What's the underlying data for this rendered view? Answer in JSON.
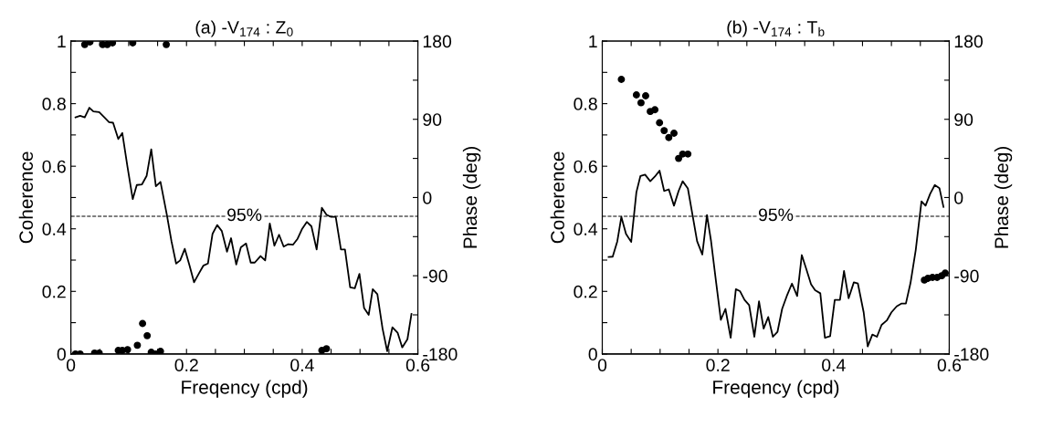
{
  "chart_data": [
    {
      "type": "line",
      "title": "(a) -V$_{174}$ : Z$_{0}$",
      "xlabel": "Freqency (cpd)",
      "ylabel": "Coherence",
      "y2label": "Phase (deg)",
      "xlim": [
        0,
        0.6
      ],
      "xticks": [
        0,
        {
          "value": 0.05,
          "label": null
        },
        {
          "value": 0.1,
          "label": null
        },
        {
          "value": 0.15,
          "label": null
        },
        0.2,
        {
          "value": 0.25,
          "label": null
        },
        {
          "value": 0.3,
          "label": null
        },
        {
          "value": 0.35,
          "label": null
        },
        0.4,
        {
          "value": 0.45,
          "label": null
        },
        {
          "value": 0.5,
          "label": null
        },
        {
          "value": 0.55,
          "label": null
        },
        0.6
      ],
      "ylim": [
        0,
        1
      ],
      "yticks": [
        0,
        {
          "value": 0.1,
          "label": null
        },
        0.2,
        {
          "value": 0.3,
          "label": null
        },
        0.4,
        {
          "value": 0.5,
          "label": null
        },
        0.6,
        {
          "value": 0.7,
          "label": null
        },
        0.8,
        {
          "value": 0.9,
          "label": null
        },
        1
      ],
      "y2lim": [
        -180,
        180
      ],
      "y2ticks": [
        -180,
        {
          "value": -135,
          "label": null
        },
        -90,
        {
          "value": -45,
          "label": null
        },
        0,
        {
          "value": 45,
          "label": null
        },
        90,
        {
          "value": 135,
          "label": null
        },
        180
      ],
      "grid": false,
      "ref_lines": [
        {
          "axis": "y",
          "value": 0.44,
          "color": "#000000",
          "line_style": "dashed"
        }
      ],
      "annotations": [
        {
          "text": "95%",
          "x": 0.3,
          "y": 0.44
        }
      ],
      "series": [
        {
          "color": "#000000",
          "marker": "none",
          "line_style": "solid",
          "x": [
            0.008,
            0.016,
            0.024,
            0.032,
            0.039,
            0.049,
            0.058,
            0.066,
            0.073,
            0.082,
            0.089,
            0.098,
            0.107,
            0.114,
            0.123,
            0.131,
            0.139,
            0.147,
            0.155,
            0.166,
            0.174,
            0.182,
            0.189,
            0.197,
            0.205,
            0.213,
            0.221,
            0.229,
            0.237,
            0.245,
            0.253,
            0.261,
            0.27,
            0.277,
            0.286,
            0.294,
            0.303,
            0.311,
            0.318,
            0.328,
            0.336,
            0.344,
            0.352,
            0.36,
            0.368,
            0.376,
            0.384,
            0.392,
            0.4,
            0.408,
            0.416,
            0.425,
            0.434,
            0.442,
            0.45,
            0.458,
            0.467,
            0.474,
            0.483,
            0.491,
            0.499,
            0.507,
            0.515,
            0.522,
            0.53,
            0.539,
            0.547,
            0.556,
            0.565,
            0.573,
            0.582,
            0.589
          ],
          "values": [
            0.756,
            0.761,
            0.756,
            0.787,
            0.775,
            0.773,
            0.756,
            0.741,
            0.739,
            0.687,
            0.706,
            0.597,
            0.495,
            0.54,
            0.542,
            0.569,
            0.654,
            0.536,
            0.55,
            0.445,
            0.36,
            0.289,
            0.299,
            0.336,
            0.284,
            0.229,
            0.256,
            0.282,
            0.289,
            0.384,
            0.412,
            0.393,
            0.327,
            0.37,
            0.286,
            0.341,
            0.353,
            0.292,
            0.292,
            0.313,
            0.299,
            0.417,
            0.346,
            0.381,
            0.343,
            0.351,
            0.349,
            0.368,
            0.4,
            0.422,
            0.408,
            0.334,
            0.467,
            0.445,
            0.438,
            0.438,
            0.334,
            0.334,
            0.213,
            0.21,
            0.256,
            0.147,
            0.125,
            0.207,
            0.191,
            0.081,
            0.009,
            0.085,
            0.068,
            0.021,
            0.047,
            0.128
          ]
        },
        {
          "type": "scatter",
          "color": "#000000",
          "marker": "circle",
          "axis": "y2",
          "x": [
            0.024,
            0.033,
            0.055,
            0.063,
            0.072,
            0.107,
            0.165,
            0.008,
            0.016,
            0.041,
            0.049,
            0.082,
            0.089,
            0.098,
            0.115,
            0.124,
            0.132,
            0.139,
            0.147,
            0.155,
            0.434,
            0.442
          ],
          "values": [
            176,
            179,
            176,
            176,
            178,
            178,
            176,
            -180,
            -180,
            -179,
            -179,
            -176,
            -176,
            -175,
            -170,
            -145,
            -159,
            -178,
            -180,
            -177,
            -176,
            -174
          ]
        }
      ]
    },
    {
      "type": "line",
      "title": "(b) -V$_{174}$ : T$_{b}$",
      "xlabel": "Freqency (cpd)",
      "ylabel": "Coherence",
      "y2label": "Phase (deg)",
      "xlim": [
        0,
        0.6
      ],
      "xticks": [
        0,
        {
          "value": 0.05,
          "label": null
        },
        {
          "value": 0.1,
          "label": null
        },
        {
          "value": 0.15,
          "label": null
        },
        0.2,
        {
          "value": 0.25,
          "label": null
        },
        {
          "value": 0.3,
          "label": null
        },
        {
          "value": 0.35,
          "label": null
        },
        0.4,
        {
          "value": 0.45,
          "label": null
        },
        {
          "value": 0.5,
          "label": null
        },
        {
          "value": 0.55,
          "label": null
        },
        0.6
      ],
      "ylim": [
        0,
        1
      ],
      "yticks": [
        0,
        {
          "value": 0.1,
          "label": null
        },
        0.2,
        {
          "value": 0.3,
          "label": null
        },
        0.4,
        {
          "value": 0.5,
          "label": null
        },
        0.6,
        {
          "value": 0.7,
          "label": null
        },
        0.8,
        {
          "value": 0.9,
          "label": null
        },
        1
      ],
      "y2lim": [
        -180,
        180
      ],
      "y2ticks": [
        -180,
        {
          "value": -135,
          "label": null
        },
        -90,
        {
          "value": -45,
          "label": null
        },
        0,
        {
          "value": 45,
          "label": null
        },
        90,
        {
          "value": 135,
          "label": null
        },
        180
      ],
      "grid": false,
      "ref_lines": [
        {
          "axis": "y",
          "value": 0.44,
          "color": "#000000",
          "line_style": "dashed"
        }
      ],
      "annotations": [
        {
          "text": "95%",
          "x": 0.3,
          "y": 0.44
        }
      ],
      "series": [
        {
          "color": "#000000",
          "marker": "none",
          "line_style": "solid",
          "x": [
            0.011,
            0.018,
            0.026,
            0.033,
            0.041,
            0.05,
            0.059,
            0.066,
            0.074,
            0.083,
            0.091,
            0.099,
            0.107,
            0.115,
            0.124,
            0.132,
            0.139,
            0.148,
            0.156,
            0.164,
            0.173,
            0.181,
            0.188,
            0.197,
            0.205,
            0.213,
            0.222,
            0.231,
            0.238,
            0.246,
            0.254,
            0.263,
            0.271,
            0.279,
            0.287,
            0.295,
            0.303,
            0.311,
            0.319,
            0.328,
            0.337,
            0.345,
            0.353,
            0.361,
            0.368,
            0.377,
            0.385,
            0.394,
            0.402,
            0.411,
            0.418,
            0.426,
            0.435,
            0.442,
            0.452,
            0.459,
            0.467,
            0.475,
            0.483,
            0.492,
            0.5,
            0.509,
            0.517,
            0.525,
            0.533,
            0.542,
            0.552,
            0.559,
            0.567,
            0.575,
            0.583,
            0.59
          ],
          "values": [
            0.31,
            0.311,
            0.36,
            0.438,
            0.384,
            0.358,
            0.517,
            0.569,
            0.573,
            0.552,
            0.567,
            0.586,
            0.521,
            0.526,
            0.474,
            0.521,
            0.552,
            0.529,
            0.445,
            0.36,
            0.318,
            0.444,
            0.362,
            0.227,
            0.109,
            0.144,
            0.052,
            0.207,
            0.201,
            0.173,
            0.156,
            0.055,
            0.168,
            0.081,
            0.118,
            0.055,
            0.071,
            0.144,
            0.185,
            0.225,
            0.185,
            0.316,
            0.27,
            0.223,
            0.204,
            0.194,
            0.052,
            0.057,
            0.173,
            0.173,
            0.265,
            0.178,
            0.229,
            0.225,
            0.133,
            0.024,
            0.062,
            0.055,
            0.093,
            0.107,
            0.133,
            0.152,
            0.161,
            0.161,
            0.227,
            0.332,
            0.488,
            0.474,
            0.512,
            0.54,
            0.53,
            0.47
          ]
        },
        {
          "type": "scatter",
          "color": "#000000",
          "marker": "circle",
          "axis": "y2",
          "x": [
            0.033,
            0.059,
            0.067,
            0.075,
            0.083,
            0.091,
            0.099,
            0.107,
            0.115,
            0.124,
            0.132,
            0.139,
            0.148,
            0.557,
            0.563,
            0.571,
            0.579,
            0.587,
            0.593
          ],
          "values": [
            136,
            118,
            109,
            117,
            99,
            101,
            86,
            77,
            69,
            74,
            45,
            50,
            50,
            -95,
            -93,
            -92,
            -92,
            -90,
            -87
          ]
        }
      ]
    }
  ]
}
